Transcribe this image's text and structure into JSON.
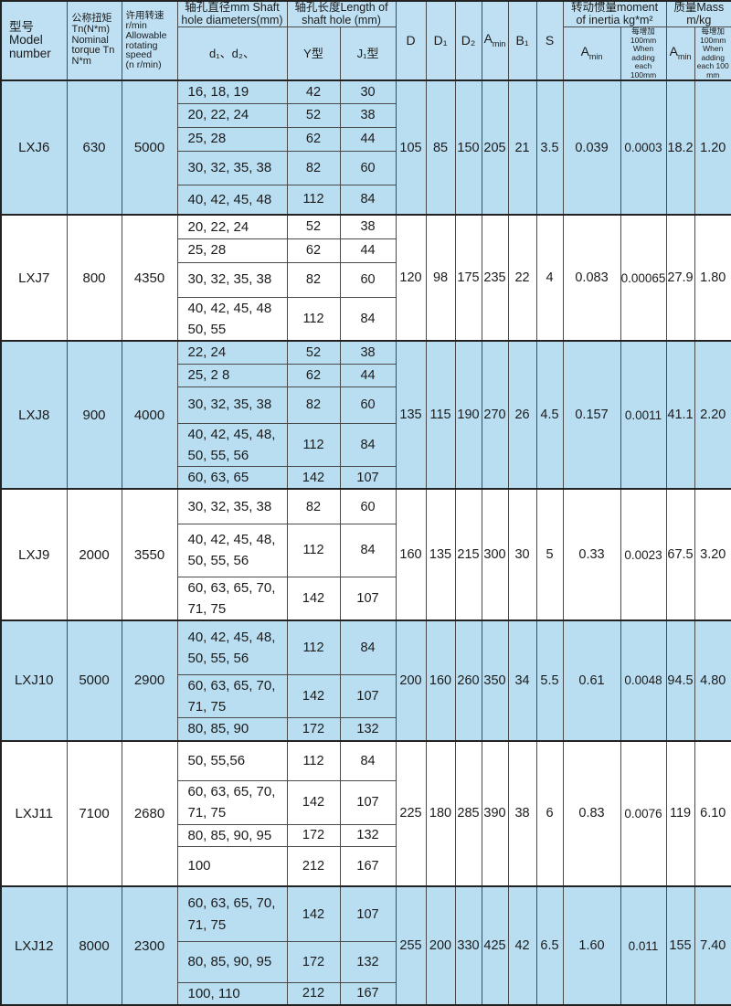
{
  "colors": {
    "row_blue": "#b9def2",
    "row_white": "#ffffff",
    "border": "#4a4a4a",
    "text": "#1b1b1b"
  },
  "header": {
    "model": "型号\nModel\nnumber",
    "torque": "公称扭矩\nTn(N*m)\nNominal\ntorque Tn\nN*m",
    "speed": "许用转速\nr/min\nAllowable\nrotating\nspeed\n(n r/min)",
    "dia_group": "轴孔直径mm Shaft\nhole diameters(mm)",
    "len_group": "轴孔长度Length of\nshaft hole (mm)",
    "d_sub": "d₁、d₂、",
    "y_sub": "Y型",
    "j_sub": "J₁型",
    "D": "D",
    "D1": "D₁",
    "D2": "D₂",
    "Amin_base": "A",
    "Amin_sub": "min",
    "B1": "B₁",
    "S": "S",
    "inertia_group": "转动惯量moment\nof inertia kg*m²",
    "inertia_per100": "每增加100mm\nWhen adding\neach 100mm",
    "mass_group": "质量Mass\nm/kg",
    "mass_per100": "每增加100mm\nWhen adding\neach 100 mm"
  },
  "models": [
    {
      "name": "LXJ6",
      "torque": "630",
      "speed": "5000",
      "shade": "blue",
      "subrows": [
        {
          "d": "16, 18, 19",
          "y": "42",
          "j": "30"
        },
        {
          "d": "20, 22, 24",
          "y": "52",
          "j": "38"
        },
        {
          "d": "25, 28",
          "y": "62",
          "j": "44"
        },
        {
          "d": "30, 32, 35, 38",
          "y": "82",
          "j": "60"
        },
        {
          "d": "40, 42, 45, 48",
          "y": "112",
          "j": "84"
        }
      ],
      "D": "105",
      "D1": "85",
      "D2": "150",
      "Amin": "205",
      "B1": "21",
      "S": "3.5",
      "inertia": "0.039",
      "inertia_per": "0.0003",
      "mass": "18.2",
      "mass_per": "1.20"
    },
    {
      "name": "LXJ7",
      "torque": "800",
      "speed": "4350",
      "shade": "white",
      "subrows": [
        {
          "d": "20, 22, 24",
          "y": "52",
          "j": "38"
        },
        {
          "d": "25, 28",
          "y": "62",
          "j": "44"
        },
        {
          "d": "30, 32, 35, 38",
          "y": "82",
          "j": "60"
        },
        {
          "d": "40, 42, 45, 48\n50, 55",
          "y": "112",
          "j": "84"
        }
      ],
      "D": "120",
      "D1": "98",
      "D2": "175",
      "Amin": "235",
      "B1": "22",
      "S": "4",
      "inertia": "0.083",
      "inertia_per": "0.00065",
      "mass": "27.9",
      "mass_per": "1.80"
    },
    {
      "name": "LXJ8",
      "torque": "900",
      "speed": "4000",
      "shade": "blue",
      "subrows": [
        {
          "d": "22, 24",
          "y": "52",
          "j": "38"
        },
        {
          "d": "25, 2 8",
          "y": "62",
          "j": "44"
        },
        {
          "d": "30, 32, 35, 38",
          "y": "82",
          "j": "60"
        },
        {
          "d": "40, 42, 45, 48,\n50, 55, 56",
          "y": "112",
          "j": "84"
        },
        {
          "d": "60, 63, 65",
          "y": "142",
          "j": "107"
        }
      ],
      "D": "135",
      "D1": "115",
      "D2": "190",
      "Amin": "270",
      "B1": "26",
      "S": "4.5",
      "inertia": "0.157",
      "inertia_per": "0.0011",
      "mass": "41.1",
      "mass_per": "2.20"
    },
    {
      "name": "LXJ9",
      "torque": "2000",
      "speed": "3550",
      "shade": "white",
      "subrows": [
        {
          "d": "30, 32, 35, 38",
          "y": "82",
          "j": "60"
        },
        {
          "d": "40, 42, 45, 48,\n50, 55, 56",
          "y": "112",
          "j": "84"
        },
        {
          "d": "60, 63, 65, 70,\n71, 75",
          "y": "142",
          "j": "107"
        }
      ],
      "D": "160",
      "D1": "135",
      "D2": "215",
      "Amin": "300",
      "B1": "30",
      "S": "5",
      "inertia": "0.33",
      "inertia_per": "0.0023",
      "mass": "67.5",
      "mass_per": "3.20"
    },
    {
      "name": "LXJ10",
      "torque": "5000",
      "speed": "2900",
      "shade": "blue",
      "subrows": [
        {
          "d": "40, 42, 45, 48,\n50, 55, 56",
          "y": "112",
          "j": "84"
        },
        {
          "d": "60, 63, 65, 70,\n71, 75",
          "y": "142",
          "j": "107"
        },
        {
          "d": "80, 85, 90",
          "y": "172",
          "j": "132"
        }
      ],
      "D": "200",
      "D1": "160",
      "D2": "260",
      "Amin": "350",
      "B1": "34",
      "S": "5.5",
      "inertia": "0.61",
      "inertia_per": "0.0048",
      "mass": "94.5",
      "mass_per": "4.80"
    },
    {
      "name": "LXJ11",
      "torque": "7100",
      "speed": "2680",
      "shade": "white",
      "subrows": [
        {
          "d": "50, 55,56",
          "y": "112",
          "j": "84"
        },
        {
          "d": "60, 63, 65, 70,\n71, 75",
          "y": "142",
          "j": "107"
        },
        {
          "d": "80, 85, 90, 95",
          "y": "172",
          "j": "132"
        },
        {
          "d": "100",
          "y": "212",
          "j": "167"
        }
      ],
      "D": "225",
      "D1": "180",
      "D2": "285",
      "Amin": "390",
      "B1": "38",
      "S": "6",
      "inertia": "0.83",
      "inertia_per": "0.0076",
      "mass": "119",
      "mass_per": "6.10"
    },
    {
      "name": "LXJ12",
      "torque": "8000",
      "speed": "2300",
      "shade": "blue",
      "subrows": [
        {
          "d": "60, 63, 65, 70,\n71, 75",
          "y": "142",
          "j": "107"
        },
        {
          "d": "80, 85, 90, 95",
          "y": "172",
          "j": "132"
        },
        {
          "d": "100, 110",
          "y": "212",
          "j": "167"
        }
      ],
      "D": "255",
      "D1": "200",
      "D2": "330",
      "Amin": "425",
      "B1": "42",
      "S": "6.5",
      "inertia": "1.60",
      "inertia_per": "0.011",
      "mass": "155",
      "mass_per": "7.40"
    }
  ]
}
